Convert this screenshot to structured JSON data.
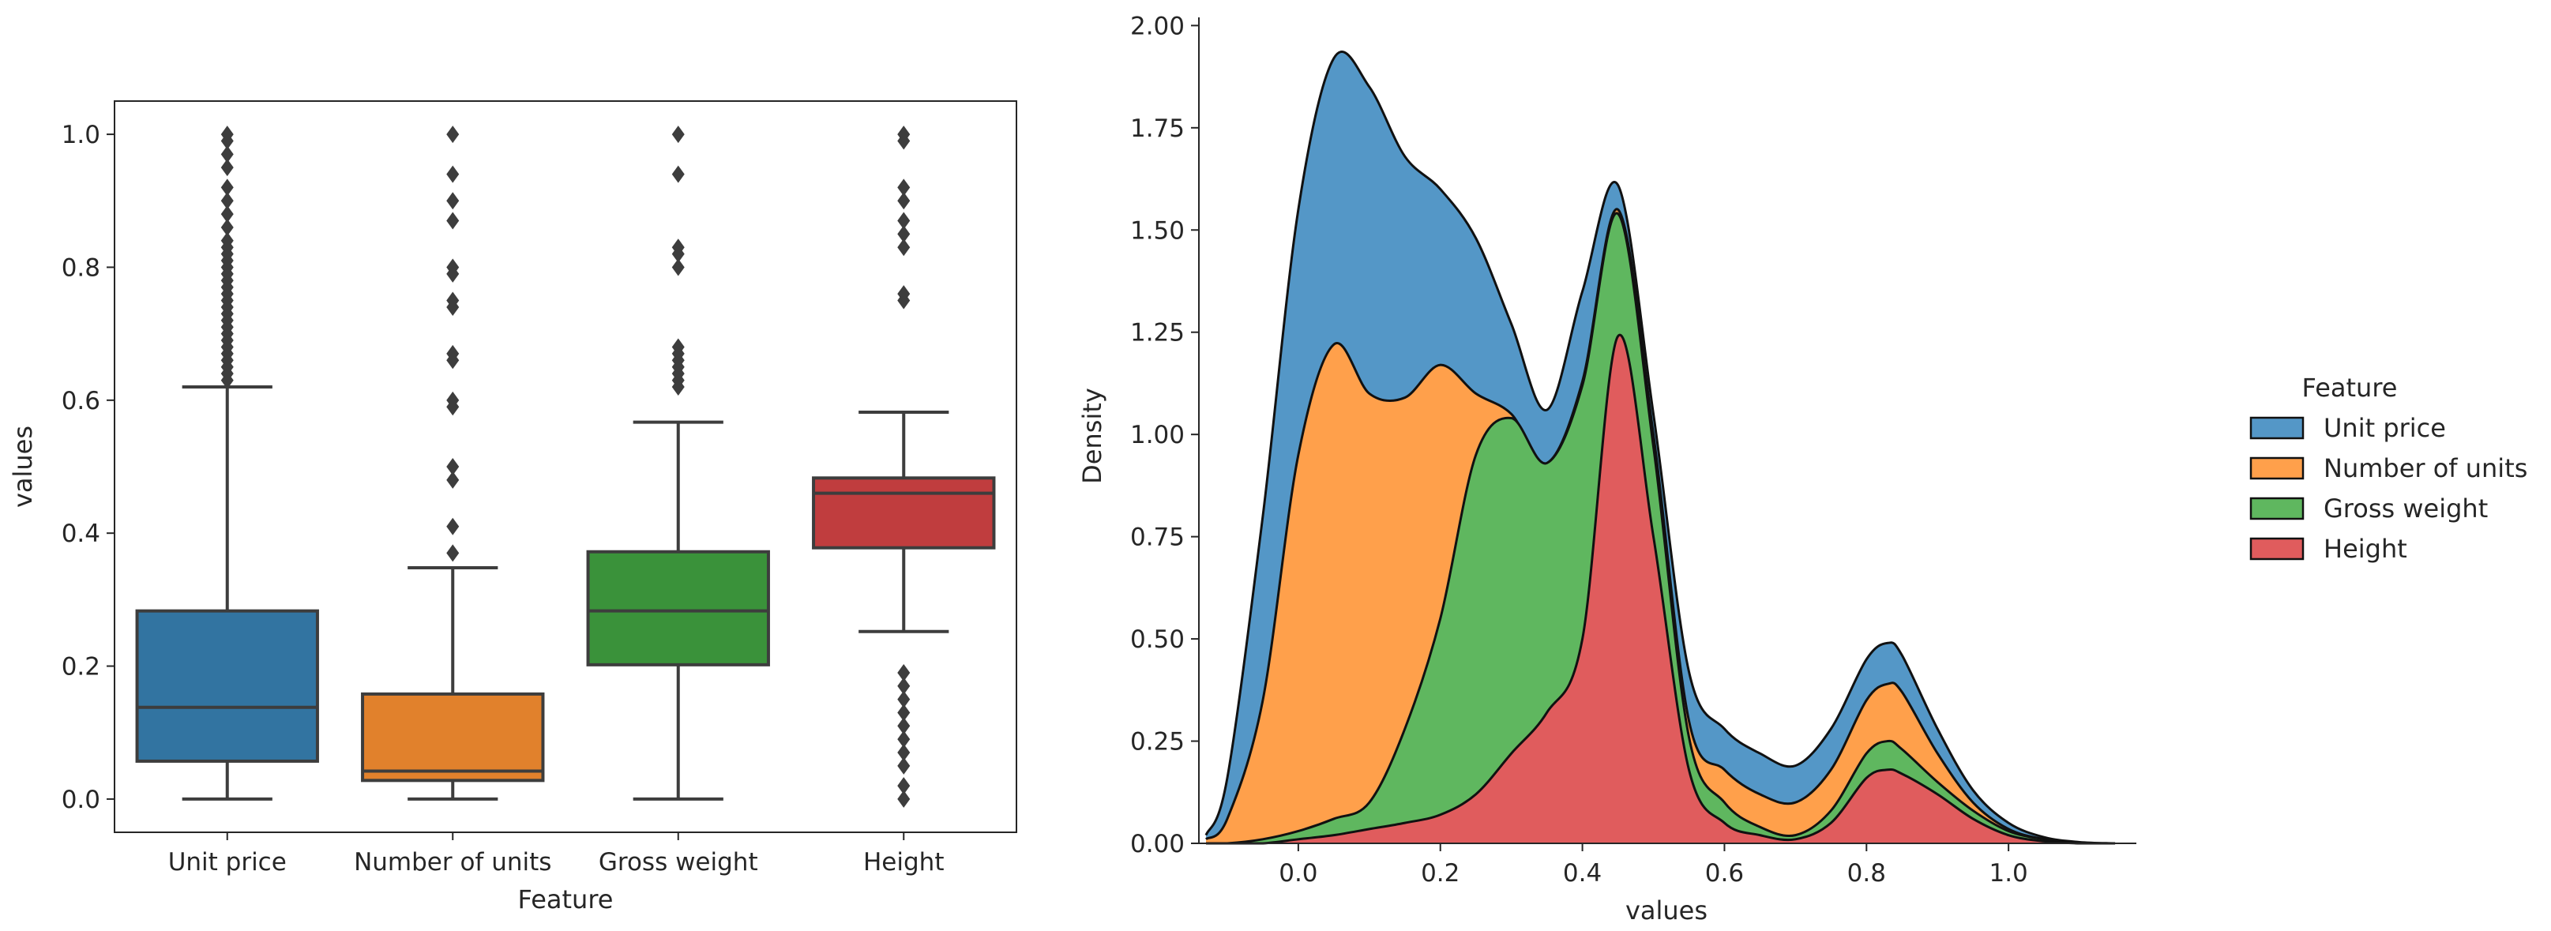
{
  "chart_data": [
    {
      "type": "box",
      "title": "",
      "xlabel": "Feature",
      "ylabel": "values",
      "categories": [
        "Unit price",
        "Number of units",
        "Gross weight",
        "Height"
      ],
      "yticks": [
        "0.0",
        "0.2",
        "0.4",
        "0.6",
        "0.8",
        "1.0"
      ],
      "ylim": [
        -0.05,
        1.05
      ],
      "boxes": [
        {
          "name": "Unit price",
          "color": "#3274a1",
          "whisker_low": 0.0,
          "q1": 0.057,
          "median": 0.138,
          "q3": 0.283,
          "whisker_high": 0.62,
          "outliers": [
            0.63,
            0.64,
            0.65,
            0.66,
            0.67,
            0.68,
            0.69,
            0.7,
            0.71,
            0.72,
            0.73,
            0.74,
            0.75,
            0.76,
            0.77,
            0.78,
            0.79,
            0.8,
            0.81,
            0.82,
            0.83,
            0.84,
            0.86,
            0.88,
            0.9,
            0.92,
            0.95,
            0.97,
            0.99,
            1.0
          ]
        },
        {
          "name": "Number of units",
          "color": "#e1812c",
          "whisker_low": 0.0,
          "q1": 0.028,
          "median": 0.042,
          "q3": 0.158,
          "whisker_high": 0.348,
          "outliers": [
            0.37,
            0.41,
            0.48,
            0.5,
            0.59,
            0.6,
            0.66,
            0.67,
            0.74,
            0.75,
            0.79,
            0.8,
            0.87,
            0.9,
            0.94,
            1.0
          ]
        },
        {
          "name": "Gross weight",
          "color": "#3a923a",
          "whisker_low": 0.0,
          "q1": 0.202,
          "median": 0.283,
          "q3": 0.372,
          "whisker_high": 0.567,
          "outliers": [
            0.62,
            0.63,
            0.64,
            0.65,
            0.66,
            0.67,
            0.68,
            0.8,
            0.82,
            0.83,
            0.94,
            1.0
          ]
        },
        {
          "name": "Height",
          "color": "#c03d3e",
          "whisker_low": 0.252,
          "q1": 0.378,
          "median": 0.46,
          "q3": 0.483,
          "whisker_high": 0.582,
          "outliers": [
            0.0,
            0.02,
            0.05,
            0.07,
            0.09,
            0.11,
            0.13,
            0.15,
            0.17,
            0.19,
            0.75,
            0.76,
            0.83,
            0.85,
            0.87,
            0.9,
            0.92,
            0.99,
            1.0
          ]
        }
      ]
    },
    {
      "type": "area",
      "stacked": true,
      "title": "",
      "xlabel": "values",
      "ylabel": "Density",
      "xticks": [
        "0.0",
        "0.2",
        "0.4",
        "0.6",
        "0.8",
        "1.0"
      ],
      "yticks": [
        "0.00",
        "0.25",
        "0.50",
        "0.75",
        "1.00",
        "1.25",
        "1.50",
        "1.75",
        "2.00"
      ],
      "xlim": [
        -0.14,
        1.18
      ],
      "ylim": [
        0,
        2.02
      ],
      "legend": {
        "title": "Feature",
        "position": "right",
        "entries": [
          "Unit price",
          "Number of units",
          "Gross weight",
          "Height"
        ]
      },
      "x": [
        -0.13,
        -0.1,
        -0.05,
        0.0,
        0.05,
        0.1,
        0.15,
        0.2,
        0.25,
        0.3,
        0.35,
        0.4,
        0.45,
        0.5,
        0.55,
        0.6,
        0.65,
        0.7,
        0.75,
        0.8,
        0.83,
        0.85,
        0.9,
        0.95,
        1.0,
        1.05,
        1.1,
        1.15
      ],
      "series": [
        {
          "name": "Height",
          "color": "#e05c5d",
          "cumulative": [
            0.0,
            0.0,
            0.0,
            0.01,
            0.02,
            0.035,
            0.05,
            0.07,
            0.12,
            0.22,
            0.32,
            0.5,
            1.24,
            0.75,
            0.18,
            0.05,
            0.02,
            0.01,
            0.05,
            0.16,
            0.18,
            0.17,
            0.12,
            0.06,
            0.02,
            0.005,
            0.0,
            0.0
          ]
        },
        {
          "name": "Gross weight",
          "color": "#5fb75f",
          "cumulative": [
            0.0,
            0.0,
            0.01,
            0.03,
            0.06,
            0.1,
            0.28,
            0.55,
            0.95,
            1.04,
            0.93,
            1.12,
            1.54,
            0.97,
            0.26,
            0.1,
            0.04,
            0.02,
            0.08,
            0.22,
            0.25,
            0.23,
            0.15,
            0.08,
            0.03,
            0.01,
            0.0,
            0.0
          ]
        },
        {
          "name": "Number of units",
          "color": "#ffa04b",
          "cumulative": [
            0.01,
            0.06,
            0.35,
            0.95,
            1.22,
            1.1,
            1.09,
            1.17,
            1.1,
            1.05,
            0.93,
            1.13,
            1.55,
            1.0,
            0.3,
            0.18,
            0.12,
            0.1,
            0.18,
            0.35,
            0.39,
            0.37,
            0.22,
            0.1,
            0.035,
            0.01,
            0.0,
            0.0
          ]
        },
        {
          "name": "Unit price",
          "color": "#5497c7",
          "cumulative": [
            0.02,
            0.16,
            0.8,
            1.55,
            1.92,
            1.85,
            1.68,
            1.6,
            1.48,
            1.27,
            1.06,
            1.35,
            1.61,
            1.05,
            0.42,
            0.28,
            0.22,
            0.19,
            0.28,
            0.45,
            0.49,
            0.46,
            0.28,
            0.13,
            0.05,
            0.015,
            0.003,
            0.0
          ]
        }
      ]
    }
  ]
}
